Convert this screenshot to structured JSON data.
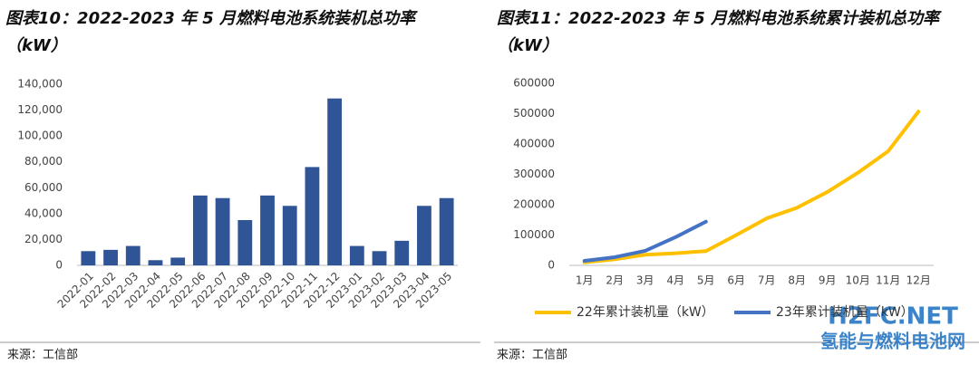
{
  "chart_data": [
    {
      "type": "bar",
      "title": "图表10：2022-2023 年 5 月燃料电池系统装机总功率（kW）",
      "categories": [
        "2022-01",
        "2022-02",
        "2022-03",
        "2022-04",
        "2022-05",
        "2022-06",
        "2022-07",
        "2022-08",
        "2022-09",
        "2022-10",
        "2022-11",
        "2022-12",
        "2023-01",
        "2023-02",
        "2023-03",
        "2023-04",
        "2023-05"
      ],
      "values": [
        11000,
        12000,
        15000,
        4000,
        6000,
        54000,
        52000,
        35000,
        54000,
        46000,
        76000,
        129000,
        15000,
        11000,
        19000,
        46000,
        52000
      ],
      "color": "#2f5597",
      "ylim": [
        0,
        140000
      ],
      "yticks": [
        0,
        {
          "value": 20000,
          "label": "20,000"
        },
        {
          "value": 40000,
          "label": "40,000"
        },
        {
          "value": 60000,
          "label": "60,000"
        },
        {
          "value": 80000,
          "label": "80,000"
        },
        {
          "value": 100000,
          "label": "100,000"
        },
        {
          "value": 120000,
          "label": "120,000"
        },
        {
          "value": 140000,
          "label": "140,000"
        }
      ],
      "source": "来源：工信部"
    },
    {
      "type": "line",
      "title": "图表11：2022-2023 年 5 月燃料电池系统累计装机总功率（kW）",
      "categories": [
        "1月",
        "2月",
        "3月",
        "4月",
        "5月",
        "6月",
        "7月",
        "8月",
        "9月",
        "10月",
        "11月",
        "12月"
      ],
      "series": [
        {
          "name": "22年累计装机量（kW）",
          "color": "#ffc000",
          "values": [
            10000,
            20000,
            35000,
            40000,
            47000,
            100000,
            155000,
            190000,
            242000,
            305000,
            376000,
            507000
          ]
        },
        {
          "name": "23年累计装机量（kW）",
          "color": "#4472c4",
          "values": [
            15000,
            27000,
            48000,
            93000,
            144000,
            null,
            null,
            null,
            null,
            null,
            null,
            null
          ]
        }
      ],
      "ylim": [
        0,
        600000
      ],
      "yticks": [
        0,
        100000,
        200000,
        300000,
        400000,
        500000,
        600000
      ],
      "source": "来源：工信部"
    }
  ],
  "watermark": {
    "logo": "H2FC.NET",
    "text": "氢能与燃料电池网"
  }
}
